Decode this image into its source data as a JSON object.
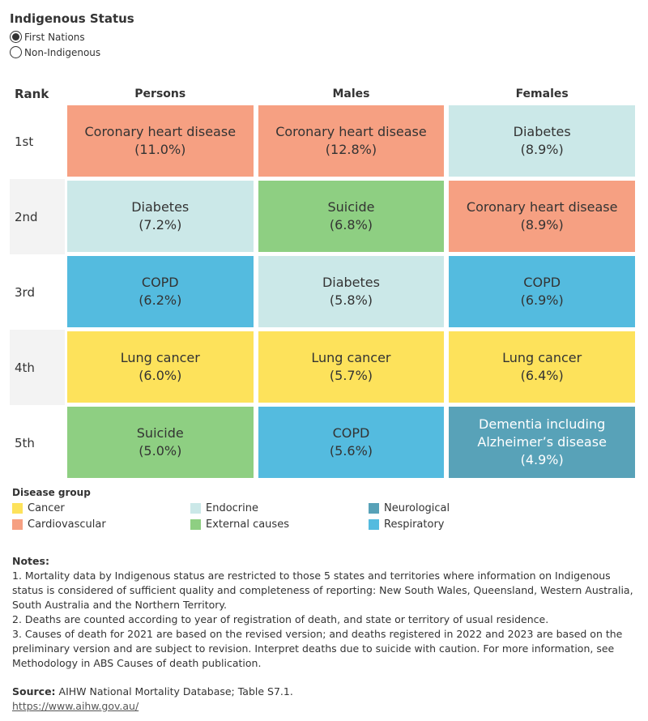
{
  "filter": {
    "title": "Indigenous Status",
    "options": [
      "First Nations",
      "Non-Indigenous"
    ],
    "selected": 0
  },
  "legend": {
    "title": "Disease group",
    "groups": [
      {
        "name": "Cancer",
        "color": "#fde25b"
      },
      {
        "name": "Cardiovascular",
        "color": "#f6a082"
      },
      {
        "name": "Endocrine",
        "color": "#cbe8e8"
      },
      {
        "name": "External causes",
        "color": "#8ecf82"
      },
      {
        "name": "Neurological",
        "color": "#58a2b8"
      },
      {
        "name": "Respiratory",
        "color": "#54bbdf"
      }
    ]
  },
  "table": {
    "headers": [
      "Rank",
      "Persons",
      "Males",
      "Females"
    ],
    "rows": [
      {
        "rank": "1st",
        "cells": [
          {
            "label": "Coronary heart disease",
            "value": "(11.0%)",
            "group": 1
          },
          {
            "label": "Coronary heart disease",
            "value": "(12.8%)",
            "group": 1
          },
          {
            "label": "Diabetes",
            "value": "(8.9%)",
            "group": 2
          }
        ]
      },
      {
        "rank": "2nd",
        "cells": [
          {
            "label": "Diabetes",
            "value": "(7.2%)",
            "group": 2
          },
          {
            "label": "Suicide",
            "value": "(6.8%)",
            "group": 3
          },
          {
            "label": "Coronary heart disease",
            "value": "(8.9%)",
            "group": 1
          }
        ]
      },
      {
        "rank": "3rd",
        "cells": [
          {
            "label": "COPD",
            "value": "(6.2%)",
            "group": 5
          },
          {
            "label": "Diabetes",
            "value": "(5.8%)",
            "group": 2
          },
          {
            "label": "COPD",
            "value": "(6.9%)",
            "group": 5
          }
        ]
      },
      {
        "rank": "4th",
        "cells": [
          {
            "label": "Lung cancer",
            "value": "(6.0%)",
            "group": 0
          },
          {
            "label": "Lung cancer",
            "value": "(5.7%)",
            "group": 0
          },
          {
            "label": "Lung cancer",
            "value": "(6.4%)",
            "group": 0
          }
        ]
      },
      {
        "rank": "5th",
        "cells": [
          {
            "label": "Suicide",
            "value": "(5.0%)",
            "group": 3
          },
          {
            "label": "COPD",
            "value": "(5.6%)",
            "group": 5
          },
          {
            "label": "Dementia including Alzheimer’s disease",
            "value": "(4.9%)",
            "group": 4
          }
        ]
      }
    ]
  },
  "notes": {
    "title": "Notes:",
    "items": [
      "1. Mortality data by Indigenous status are restricted to those 5 states and territories where information on Indigenous status is considered of sufficient quality and completeness of reporting: New South Wales, Queensland, Western Australia, South Australia and the Northern Territory.",
      "2. Deaths are counted according to year of registration of death, and state or territory of usual residence.",
      "3. Causes of death for 2021 are based on the revised version; and deaths registered in 2022 and 2023 are based on the preliminary version and are subject to revision. Interpret deaths due to suicide with caution. For more information, see Methodology in ABS Causes of death publication."
    ]
  },
  "source": {
    "label": "Source:",
    "text": "AIHW National Mortality Database; Table S7.1.",
    "link": "https://www.aihw.gov.au/"
  }
}
